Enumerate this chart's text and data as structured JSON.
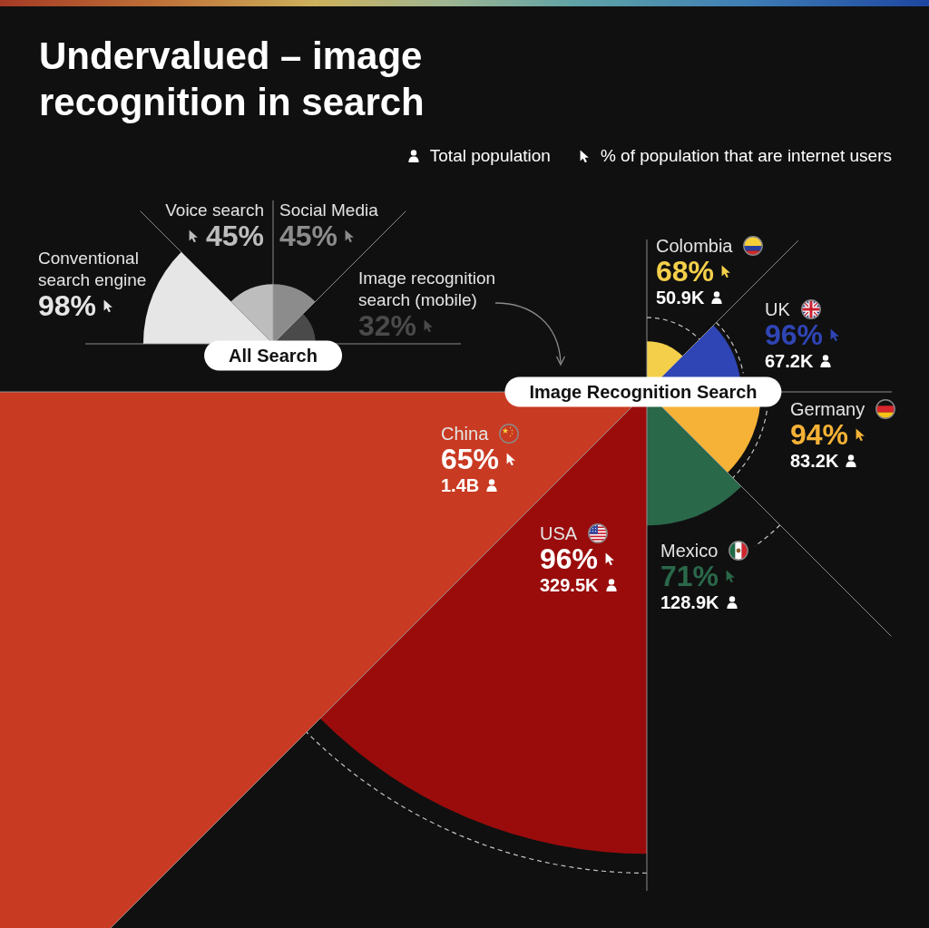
{
  "chart_data": [
    {
      "type": "other",
      "title": "Undervalued – image recognition in search",
      "xlabel": "All Search",
      "categories": [
        "Conventional search engine",
        "Voice search",
        "Social Media",
        "Image recognition search (mobile)"
      ],
      "values": [
        98,
        45,
        45,
        32
      ],
      "value_labels": [
        "98%",
        "45%",
        "45%",
        "32%"
      ],
      "colors": [
        "#e6e6e6",
        "#bdbdbd",
        "#8c8c8c",
        "#4a4a4a"
      ]
    },
    {
      "type": "other",
      "xlabel": "Image Recognition Search",
      "categories": [
        "Colombia",
        "UK",
        "Germany",
        "Mexico",
        "USA",
        "China"
      ],
      "series": [
        {
          "name": "Total population",
          "line_style": "dashed",
          "values": [
            50900,
            67200,
            83200,
            128900,
            329500,
            1400000000
          ],
          "value_labels": [
            "50.9K",
            "67.2K",
            "83.2K",
            "128.9K",
            "329.5K",
            "1.4B"
          ]
        },
        {
          "name": "% of population that are internet users",
          "colors": [
            "#f4cf4a",
            "#2f45b5",
            "#f5b236",
            "#2a684a",
            "#9a0c0c",
            "#c93a22"
          ],
          "values": [
            68,
            96,
            94,
            71,
            96,
            65
          ],
          "value_labels": [
            "68%",
            "96%",
            "94%",
            "71%",
            "96%",
            "65%"
          ]
        }
      ],
      "legend": "top right"
    }
  ]
}
